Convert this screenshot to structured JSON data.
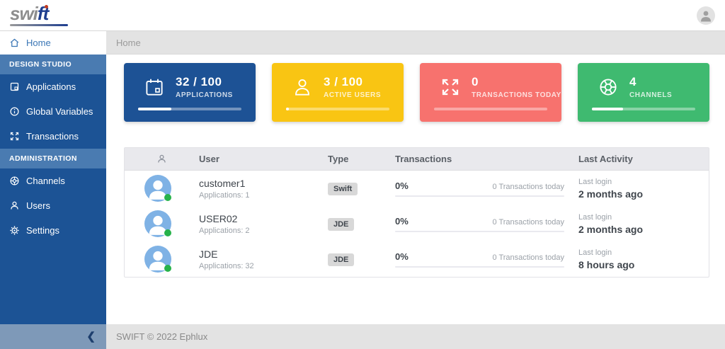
{
  "brand": {
    "logo_part1": "swi",
    "logo_part2": "ft"
  },
  "breadcrumb": {
    "label": "Home"
  },
  "sidebar": {
    "home_label": "Home",
    "sections": [
      {
        "label": "DESIGN STUDIO",
        "items": [
          {
            "label": "Applications",
            "icon": "applications-icon"
          },
          {
            "label": "Global Variables",
            "icon": "info-icon"
          },
          {
            "label": "Transactions",
            "icon": "expand-arrows-icon"
          }
        ]
      },
      {
        "label": "ADMINISTRATION",
        "items": [
          {
            "label": "Channels",
            "icon": "wheel-icon"
          },
          {
            "label": "Users",
            "icon": "user-icon"
          },
          {
            "label": "Settings",
            "icon": "gear-icon"
          }
        ]
      }
    ],
    "collapse_icon": "chevron-left"
  },
  "cards": [
    {
      "value": "32 / 100",
      "label": "APPLICATIONS",
      "color": "#1d5295",
      "progress_percent": 32,
      "icon": "calendar-icon"
    },
    {
      "value": "3 / 100",
      "label": "ACTIVE USERS",
      "color": "#f9c513",
      "progress_percent": 3,
      "icon": "user-icon"
    },
    {
      "value": "0",
      "label": "TRANSACTIONS TODAY",
      "color": "#f7726e",
      "progress_percent": 0,
      "icon": "expand-arrows-icon"
    },
    {
      "value": "4",
      "label": "CHANNELS",
      "color": "#3fba70",
      "progress_percent": 30,
      "icon": "wheel-icon"
    }
  ],
  "table": {
    "headers": {
      "user": "User",
      "type": "Type",
      "transactions": "Transactions",
      "last_activity": "Last Activity"
    },
    "rows": [
      {
        "name": "customer1",
        "applications": "Applications: 1",
        "type": "Swift",
        "percent": "0%",
        "transactions_today": "0 Transactions today",
        "last_login_label": "Last login",
        "last_activity": "2 months ago",
        "status": "online"
      },
      {
        "name": "USER02",
        "applications": "Applications: 2",
        "type": "JDE",
        "percent": "0%",
        "transactions_today": "0 Transactions today",
        "last_login_label": "Last login",
        "last_activity": "2 months ago",
        "status": "online"
      },
      {
        "name": "JDE",
        "applications": "Applications: 32",
        "type": "JDE",
        "percent": "0%",
        "transactions_today": "0 Transactions today",
        "last_login_label": "Last login",
        "last_activity": "8 hours ago",
        "status": "online"
      }
    ]
  },
  "footer": {
    "copyright": "SWIFT © 2022 Ephlux"
  }
}
